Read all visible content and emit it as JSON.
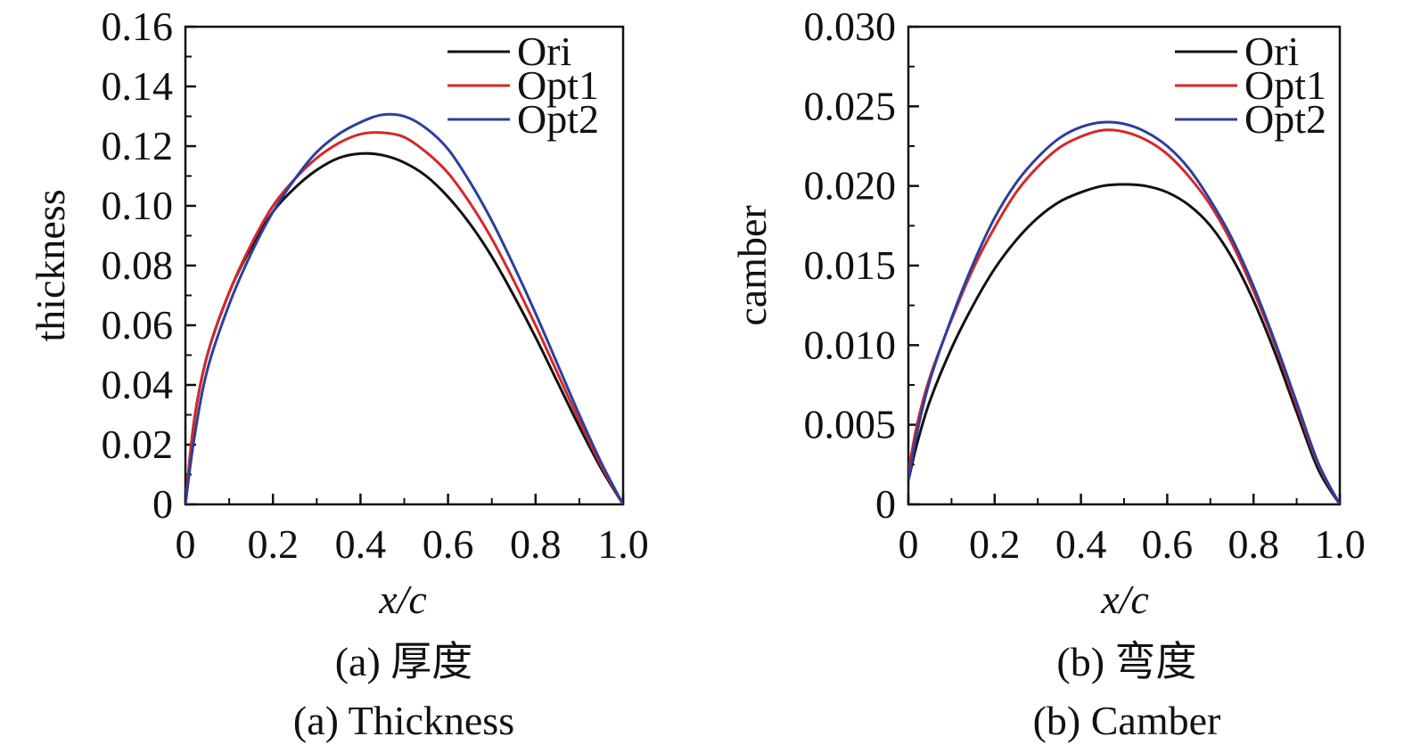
{
  "colors": {
    "Ori": "#111111",
    "Opt1": "#d62728",
    "Opt2": "#2b3f9e",
    "axis": "#111111"
  },
  "chart_data": [
    {
      "type": "line",
      "xlabel": "x/c",
      "ylabel": "thickness",
      "xlim": [
        0,
        1.0
      ],
      "ylim": [
        0,
        0.16
      ],
      "xticks": [
        0,
        0.2,
        0.4,
        0.6,
        0.8,
        1.0
      ],
      "xtick_labels": [
        "0",
        "0.2",
        "0.4",
        "0.6",
        "0.8",
        "1.0"
      ],
      "yticks": [
        0,
        0.02,
        0.04,
        0.06,
        0.08,
        0.1,
        0.12,
        0.14,
        0.16
      ],
      "ytick_labels": [
        "0",
        "0.02",
        "0.04",
        "0.06",
        "0.08",
        "0.10",
        "0.12",
        "0.14",
        "0.16"
      ],
      "legend": "top-right",
      "grid": false,
      "caption_cn": "(a) 厚度",
      "caption_en": "(a) Thickness",
      "x": [
        0,
        0.02,
        0.05,
        0.1,
        0.15,
        0.2,
        0.25,
        0.3,
        0.35,
        0.4,
        0.45,
        0.5,
        0.55,
        0.6,
        0.65,
        0.7,
        0.75,
        0.8,
        0.85,
        0.9,
        0.95,
        1.0
      ],
      "series": [
        {
          "name": "Ori",
          "values": [
            0,
            0.028,
            0.05,
            0.071,
            0.086,
            0.098,
            0.106,
            0.112,
            0.116,
            0.1175,
            0.117,
            0.1145,
            0.11,
            0.103,
            0.094,
            0.083,
            0.07,
            0.056,
            0.041,
            0.026,
            0.012,
            0
          ]
        },
        {
          "name": "Opt1",
          "values": [
            0,
            0.028,
            0.05,
            0.071,
            0.087,
            0.1,
            0.109,
            0.116,
            0.121,
            0.124,
            0.1245,
            0.123,
            0.118,
            0.111,
            0.101,
            0.089,
            0.075,
            0.06,
            0.044,
            0.028,
            0.013,
            0
          ]
        },
        {
          "name": "Opt2",
          "values": [
            0,
            0.022,
            0.045,
            0.067,
            0.084,
            0.098,
            0.109,
            0.118,
            0.124,
            0.128,
            0.1305,
            0.13,
            0.126,
            0.119,
            0.108,
            0.095,
            0.08,
            0.064,
            0.047,
            0.03,
            0.014,
            0
          ]
        }
      ]
    },
    {
      "type": "line",
      "xlabel": "x/c",
      "ylabel": "camber",
      "xlim": [
        0,
        1.0
      ],
      "ylim": [
        0,
        0.03
      ],
      "xticks": [
        0,
        0.2,
        0.4,
        0.6,
        0.8,
        1.0
      ],
      "xtick_labels": [
        "0",
        "0.2",
        "0.4",
        "0.6",
        "0.8",
        "1.0"
      ],
      "yticks": [
        0,
        0.005,
        0.01,
        0.015,
        0.02,
        0.025,
        0.03
      ],
      "ytick_labels": [
        "0",
        "0.005",
        "0.010",
        "0.015",
        "0.020",
        "0.025",
        "0.030"
      ],
      "legend": "top-right",
      "grid": false,
      "caption_cn": "(b) 弯度",
      "caption_en": "(b) Camber",
      "x": [
        0,
        0.02,
        0.05,
        0.1,
        0.15,
        0.2,
        0.25,
        0.3,
        0.35,
        0.4,
        0.45,
        0.5,
        0.55,
        0.6,
        0.65,
        0.7,
        0.75,
        0.8,
        0.85,
        0.9,
        0.95,
        1.0
      ],
      "series": [
        {
          "name": "Ori",
          "values": [
            0.0015,
            0.0038,
            0.0065,
            0.0098,
            0.0125,
            0.0148,
            0.0166,
            0.018,
            0.019,
            0.0196,
            0.02,
            0.0201,
            0.02,
            0.0196,
            0.0188,
            0.0175,
            0.0155,
            0.0128,
            0.0095,
            0.0058,
            0.0022,
            0
          ]
        },
        {
          "name": "Opt1",
          "values": [
            0.002,
            0.005,
            0.008,
            0.0116,
            0.0148,
            0.0174,
            0.0196,
            0.0212,
            0.0224,
            0.0231,
            0.0235,
            0.0234,
            0.0229,
            0.022,
            0.0206,
            0.0188,
            0.0164,
            0.0134,
            0.01,
            0.0062,
            0.0025,
            0
          ]
        },
        {
          "name": "Opt2",
          "values": [
            0.0015,
            0.0045,
            0.0078,
            0.0117,
            0.0151,
            0.018,
            0.0202,
            0.0218,
            0.023,
            0.0237,
            0.024,
            0.0239,
            0.0234,
            0.0225,
            0.0211,
            0.0191,
            0.0167,
            0.0137,
            0.0102,
            0.0064,
            0.0026,
            0
          ]
        }
      ]
    }
  ]
}
